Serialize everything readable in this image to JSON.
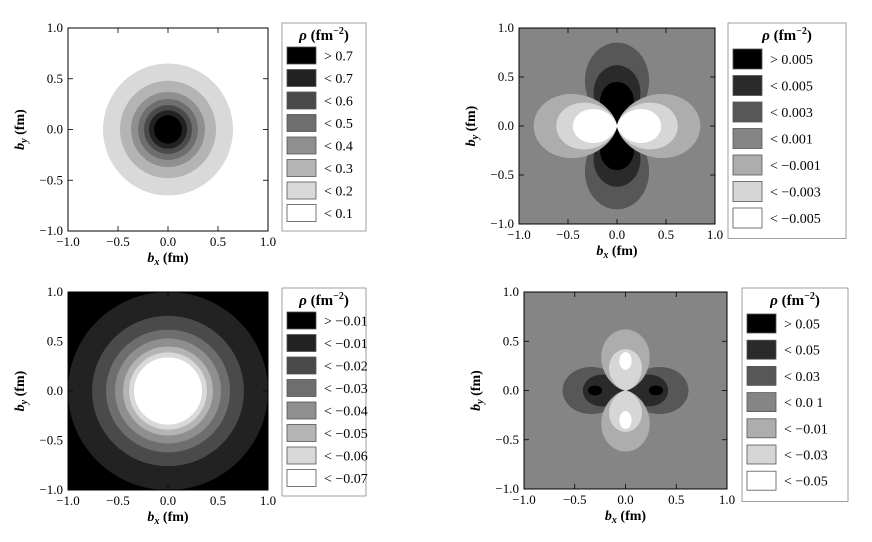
{
  "chart_data": [
    {
      "type": "heatmap",
      "panel": "top-left",
      "xlabel": {
        "main": "b",
        "sub": "x",
        "unit": " (fm)"
      },
      "ylabel": {
        "main": "b",
        "sub": "y",
        "unit": " (fm)"
      },
      "xlim": [
        -1,
        1
      ],
      "ylim": [
        -1,
        1
      ],
      "xticks": [
        "−1.0",
        "−0.5",
        "0.0",
        "0.5",
        "1.0"
      ],
      "yticks": [
        "−1.0",
        "−0.5",
        "0.0",
        "0.5",
        "1.0"
      ],
      "legend_title": {
        "sym": "ρ",
        "unit": " (fm",
        "exp": "−2",
        "close": ")"
      },
      "legend": [
        {
          "label": "> 0.7",
          "color": "#000000"
        },
        {
          "label": "< 0.7",
          "color": "#222222"
        },
        {
          "label": "< 0.6",
          "color": "#4a4a4a"
        },
        {
          "label": "< 0.5",
          "color": "#6e6e6e"
        },
        {
          "label": "< 0.4",
          "color": "#8f8f8f"
        },
        {
          "label": "< 0.3",
          "color": "#b4b4b4"
        },
        {
          "label": "< 0.2",
          "color": "#d9d9d9"
        },
        {
          "label": "< 0.1",
          "color": "#ffffff"
        }
      ],
      "background": "#ffffff",
      "rings": [
        {
          "r": 0.65,
          "color": "#d9d9d9"
        },
        {
          "r": 0.48,
          "color": "#b4b4b4"
        },
        {
          "r": 0.37,
          "color": "#8f8f8f"
        },
        {
          "r": 0.3,
          "color": "#6e6e6e"
        },
        {
          "r": 0.24,
          "color": "#4a4a4a"
        },
        {
          "r": 0.19,
          "color": "#222222"
        },
        {
          "r": 0.14,
          "color": "#000000"
        }
      ]
    },
    {
      "type": "heatmap",
      "panel": "top-right",
      "xlabel": {
        "main": "b",
        "sub": "x",
        "unit": " (fm)"
      },
      "ylabel": {
        "main": "b",
        "sub": "y",
        "unit": " (fm)"
      },
      "xlim": [
        -1,
        1
      ],
      "ylim": [
        -1,
        1
      ],
      "xticks": [
        "−1.0",
        "−0.5",
        "0.0",
        "0.5",
        "1.0"
      ],
      "yticks": [
        "−1.0",
        "−0.5",
        "0.0",
        "0.5",
        "1.0"
      ],
      "legend_title": {
        "sym": "ρ",
        "unit": " (fm",
        "exp": "−2",
        "close": ")"
      },
      "legend": [
        {
          "label": "> 0.005",
          "color": "#000000"
        },
        {
          "label": "< 0.005",
          "color": "#2a2a2a"
        },
        {
          "label": "< 0.003",
          "color": "#575757"
        },
        {
          "label": "< 0.001",
          "color": "#858585"
        },
        {
          "label": "< −0.001",
          "color": "#adadad"
        },
        {
          "label": "< −0.003",
          "color": "#d6d6d6"
        },
        {
          "label": "< −0.005",
          "color": "#ffffff"
        }
      ],
      "background": "#858585",
      "lobes": [
        {
          "axis": "y",
          "r0": 0.85,
          "color": "#575757"
        },
        {
          "axis": "y",
          "r0": 0.62,
          "color": "#2a2a2a"
        },
        {
          "axis": "y",
          "r0": 0.45,
          "color": "#000000"
        },
        {
          "axis": "x",
          "r0": 0.85,
          "color": "#adadad"
        },
        {
          "axis": "x",
          "r0": 0.62,
          "color": "#d6d6d6"
        },
        {
          "axis": "x",
          "r0": 0.45,
          "color": "#ffffff"
        }
      ]
    },
    {
      "type": "heatmap",
      "panel": "bottom-left",
      "xlabel": {
        "main": "b",
        "sub": "x",
        "unit": " (fm)"
      },
      "ylabel": {
        "main": "b",
        "sub": "y",
        "unit": " (fm)"
      },
      "xlim": [
        -1,
        1
      ],
      "ylim": [
        -1,
        1
      ],
      "xticks": [
        "−1.0",
        "−0.5",
        "0.0",
        "0.5",
        "1.0"
      ],
      "yticks": [
        "−1.0",
        "−0.5",
        "0.0",
        "0.5",
        "1.0"
      ],
      "legend_title": {
        "sym": "ρ",
        "unit": " (fm",
        "exp": "−2",
        "close": ")"
      },
      "legend": [
        {
          "label": "> −0.01",
          "color": "#000000"
        },
        {
          "label": "< −0.01",
          "color": "#222222"
        },
        {
          "label": "< −0.02",
          "color": "#4a4a4a"
        },
        {
          "label": "< −0.03",
          "color": "#6e6e6e"
        },
        {
          "label": "< −0.04",
          "color": "#8f8f8f"
        },
        {
          "label": "< −0.05",
          "color": "#b4b4b4"
        },
        {
          "label": "< −0.06",
          "color": "#d9d9d9"
        },
        {
          "label": "< −0.07",
          "color": "#ffffff"
        }
      ],
      "background": "#000000",
      "rings": [
        {
          "r": 1.0,
          "color": "#222222"
        },
        {
          "r": 0.76,
          "color": "#4a4a4a"
        },
        {
          "r": 0.62,
          "color": "#6e6e6e"
        },
        {
          "r": 0.53,
          "color": "#8f8f8f"
        },
        {
          "r": 0.45,
          "color": "#b4b4b4"
        },
        {
          "r": 0.39,
          "color": "#d9d9d9"
        },
        {
          "r": 0.34,
          "color": "#ffffff"
        }
      ]
    },
    {
      "type": "heatmap",
      "panel": "bottom-right",
      "xlabel": {
        "main": "b",
        "sub": "x",
        "unit": " (fm)"
      },
      "ylabel": {
        "main": "b",
        "sub": "y",
        "unit": " (fm)"
      },
      "xlim": [
        -1,
        1
      ],
      "ylim": [
        -1,
        1
      ],
      "xticks": [
        "−1.0",
        "−0.5",
        "0.0",
        "0.5",
        "1.0"
      ],
      "yticks": [
        "−1.0",
        "−0.5",
        "0.0",
        "0.5",
        "1.0"
      ],
      "legend_title": {
        "sym": "ρ",
        "unit": " (fm",
        "exp": "−2",
        "close": ")"
      },
      "legend": [
        {
          "label": "> 0.05",
          "color": "#000000"
        },
        {
          "label": "< 0.05",
          "color": "#2a2a2a"
        },
        {
          "label": "< 0.03",
          "color": "#575757"
        },
        {
          "label": "< 0.0 1",
          "color": "#858585"
        },
        {
          "label": "< −0.01",
          "color": "#adadad"
        },
        {
          "label": "< −0.03",
          "color": "#d6d6d6"
        },
        {
          "label": "< −0.05",
          "color": "#ffffff"
        }
      ],
      "background": "#858585",
      "lobes": [
        {
          "axis": "x",
          "r0": 0.62,
          "color": "#575757"
        },
        {
          "axis": "x",
          "r0": 0.42,
          "color": "#2a2a2a"
        },
        {
          "axis": "y",
          "r0": 0.62,
          "color": "#adadad"
        },
        {
          "axis": "y",
          "r0": 0.42,
          "color": "#d6d6d6"
        }
      ],
      "spots": [
        {
          "x": -0.3,
          "y": 0,
          "rx": 0.07,
          "ry": 0.05,
          "color": "#000000"
        },
        {
          "x": 0.3,
          "y": 0,
          "rx": 0.07,
          "ry": 0.05,
          "color": "#000000"
        },
        {
          "x": 0,
          "y": 0.3,
          "rx": 0.06,
          "ry": 0.09,
          "color": "#ffffff"
        },
        {
          "x": 0,
          "y": -0.3,
          "rx": 0.06,
          "ry": 0.09,
          "color": "#ffffff"
        }
      ]
    }
  ]
}
